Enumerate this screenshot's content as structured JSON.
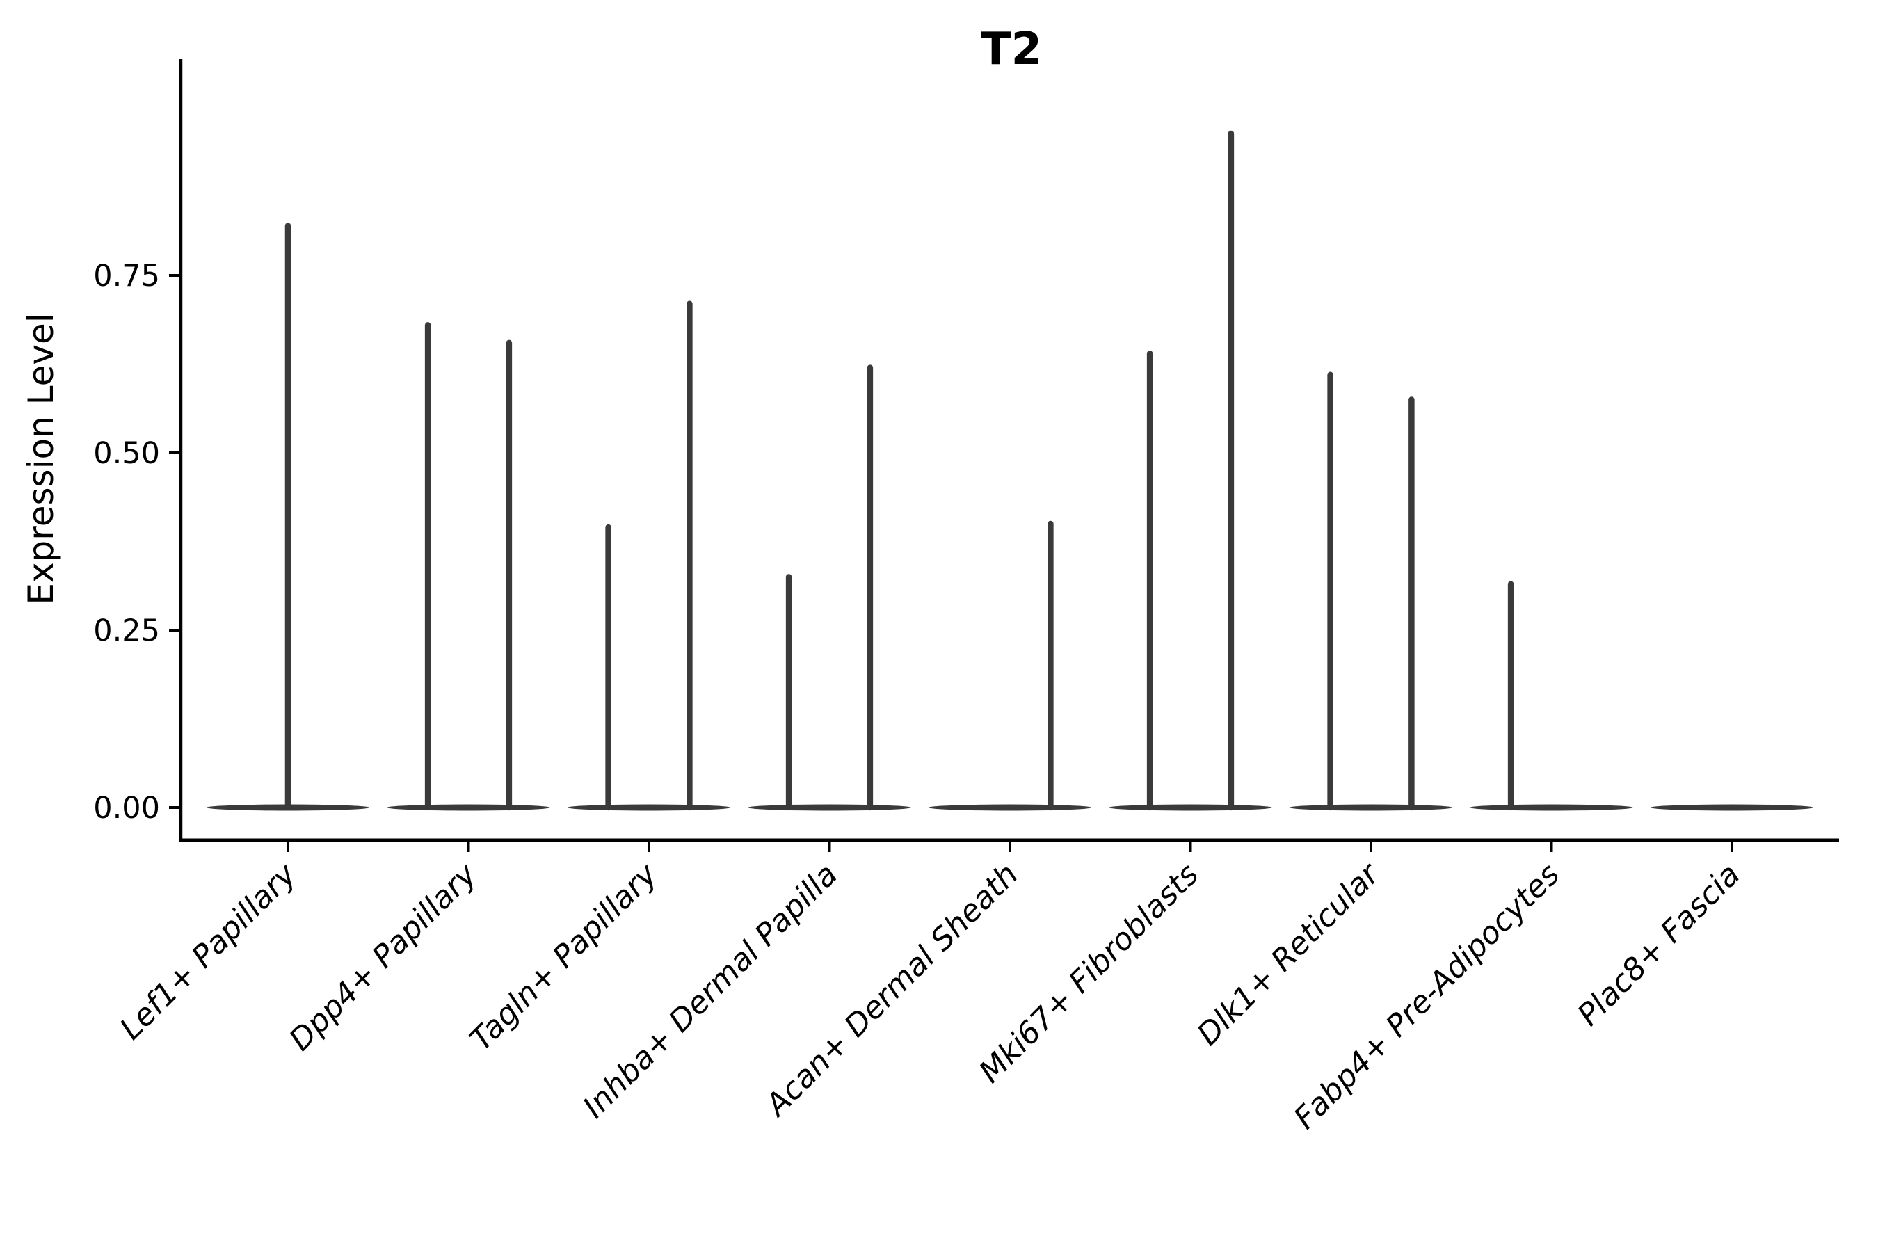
{
  "title": "T2",
  "chart_data": {
    "type": "violin",
    "title": "T2",
    "xlabel": "",
    "ylabel": "Expression Level",
    "ylim": [
      -0.04,
      1.05
    ],
    "yticks": [
      0.0,
      0.25,
      0.5,
      0.75
    ],
    "ytick_labels": [
      "0.00",
      "0.25",
      "0.50",
      "0.75"
    ],
    "categories": [
      "Lef1+ Papillary",
      "Dpp4+ Papillary",
      "Tagln+ Papillary",
      "Inhba+ Dermal Papilla",
      "Acan+ Dermal Sheath",
      "Mki67+ Fibroblasts",
      "Dlk1+ Reticular",
      "Fabp4+ Pre-Adipocytes",
      "Plac8+ Fascia"
    ],
    "violins": [
      {
        "category": "Lef1+ Papillary",
        "baseline": 0,
        "spikes": [
          {
            "offset": 0,
            "max": 0.82
          }
        ]
      },
      {
        "category": "Dpp4+ Papillary",
        "baseline": 0,
        "spikes": [
          {
            "offset": -0.225,
            "max": 0.68
          },
          {
            "offset": 0.225,
            "max": 0.655
          }
        ]
      },
      {
        "category": "Tagln+ Papillary",
        "baseline": 0,
        "spikes": [
          {
            "offset": -0.225,
            "max": 0.395
          },
          {
            "offset": 0.225,
            "max": 0.71
          }
        ]
      },
      {
        "category": "Inhba+ Dermal Papilla",
        "baseline": 0,
        "spikes": [
          {
            "offset": -0.225,
            "max": 0.325
          },
          {
            "offset": 0.225,
            "max": 0.62
          }
        ]
      },
      {
        "category": "Acan+ Dermal Sheath",
        "baseline": 0,
        "spikes": [
          {
            "offset": 0.225,
            "max": 0.4
          }
        ]
      },
      {
        "category": "Mki67+ Fibroblasts",
        "baseline": 0,
        "spikes": [
          {
            "offset": -0.225,
            "max": 0.64
          },
          {
            "offset": 0.225,
            "max": 0.95
          }
        ]
      },
      {
        "category": "Dlk1+ Reticular",
        "baseline": 0,
        "spikes": [
          {
            "offset": -0.225,
            "max": 0.61
          },
          {
            "offset": 0.225,
            "max": 0.575
          }
        ]
      },
      {
        "category": "Fabp4+ Pre-Adipocytes",
        "baseline": 0,
        "spikes": [
          {
            "offset": -0.225,
            "max": 0.315
          }
        ]
      },
      {
        "category": "Plac8+ Fascia",
        "baseline": 0,
        "spikes": []
      }
    ],
    "legend": "none",
    "grid": "off",
    "colors": {
      "violin": "#3a3a3a",
      "axis": "#000000",
      "text": "#000000",
      "background": "#ffffff"
    }
  }
}
